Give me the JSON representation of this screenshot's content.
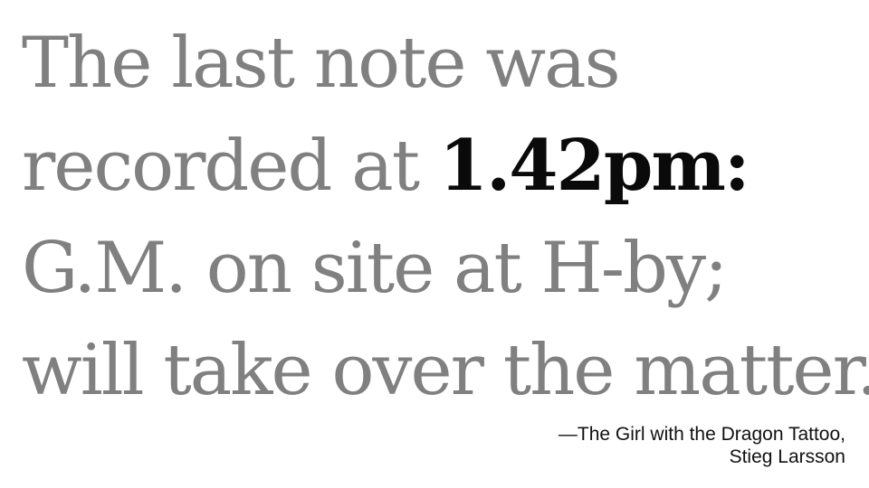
{
  "quote": {
    "line1": "The last note was",
    "line2_before": "recorded at ",
    "line2_emphasis": "1.42pm:",
    "line3": "G.M. on site at H-by;",
    "line4": "will take over the matter."
  },
  "attribution": {
    "line1": "—The Girl with the Dragon Tattoo,",
    "line2": "Stieg Larsson"
  },
  "colors": {
    "body_text": "#808080",
    "emphasis_text": "#0a0a0a",
    "attribution_text": "#111111",
    "background": "#ffffff"
  }
}
